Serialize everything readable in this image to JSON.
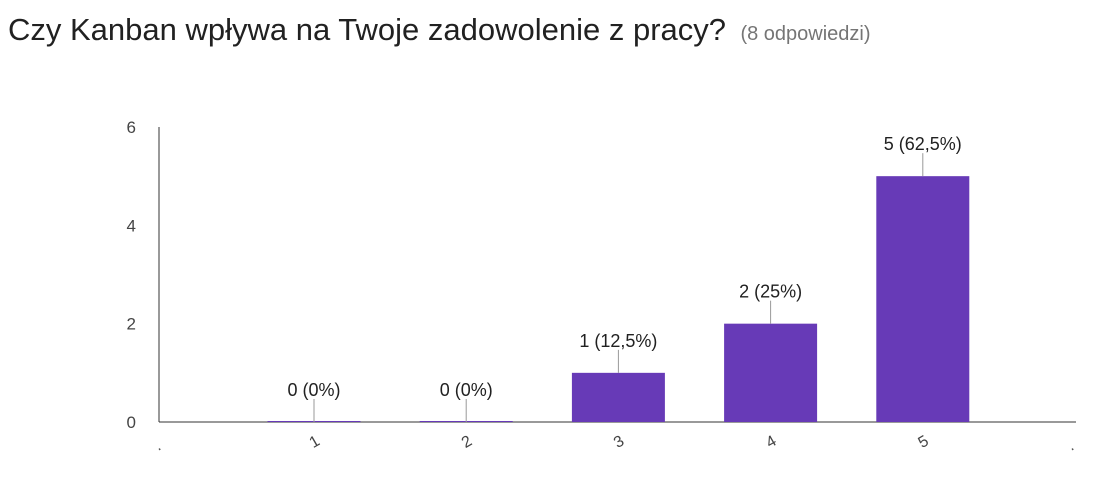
{
  "header": {
    "title": "Czy Kanban wpływa na Twoje zadowolenie z pracy?",
    "responses": "(8 odpowiedzi)"
  },
  "colors": {
    "bar": "#673ab7",
    "axis": "#333333",
    "label": "#212121",
    "subtitle": "#757575"
  },
  "chart_data": {
    "type": "bar",
    "title": "Czy Kanban wpływa na Twoje zadowolenie z pracy?",
    "categories": [
      "1",
      "2",
      "3",
      "4",
      "5"
    ],
    "values": [
      0,
      0,
      1,
      2,
      5
    ],
    "data_labels": [
      "0 (0%)",
      "0 (0%)",
      "1 (12,5%)",
      "2 (25%)",
      "5 (62,5%)"
    ],
    "yticks": [
      "0",
      "2",
      "4",
      "6"
    ],
    "ylim": [
      0,
      6
    ],
    "xlabel": "",
    "ylabel": "",
    "grid": false,
    "legend": "none"
  }
}
